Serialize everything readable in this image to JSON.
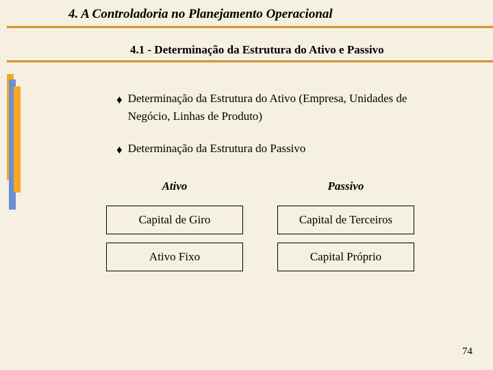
{
  "title": "4. A Controladoria no Planejamento Operacional",
  "subtitle": "4.1 - Determinação da Estrutura do Ativo e Passivo",
  "bullets": [
    "Determinação da Estrutura do Ativo (Empresa, Unidades de Negócio, Linhas de Produto)",
    "Determinação da Estrutura do Passivo"
  ],
  "table": {
    "left": {
      "header": "Ativo",
      "rows": [
        "Capital de Giro",
        "Ativo Fixo"
      ]
    },
    "right": {
      "header": "Passivo",
      "rows": [
        "Capital de Terceiros",
        "Capital Próprio"
      ]
    }
  },
  "pageNumber": "74",
  "colors": {
    "background": "#f5f0e1",
    "accentOrange": "#f7a823",
    "accentBlue": "#6b8fd4",
    "rule": "#cc7a00"
  }
}
